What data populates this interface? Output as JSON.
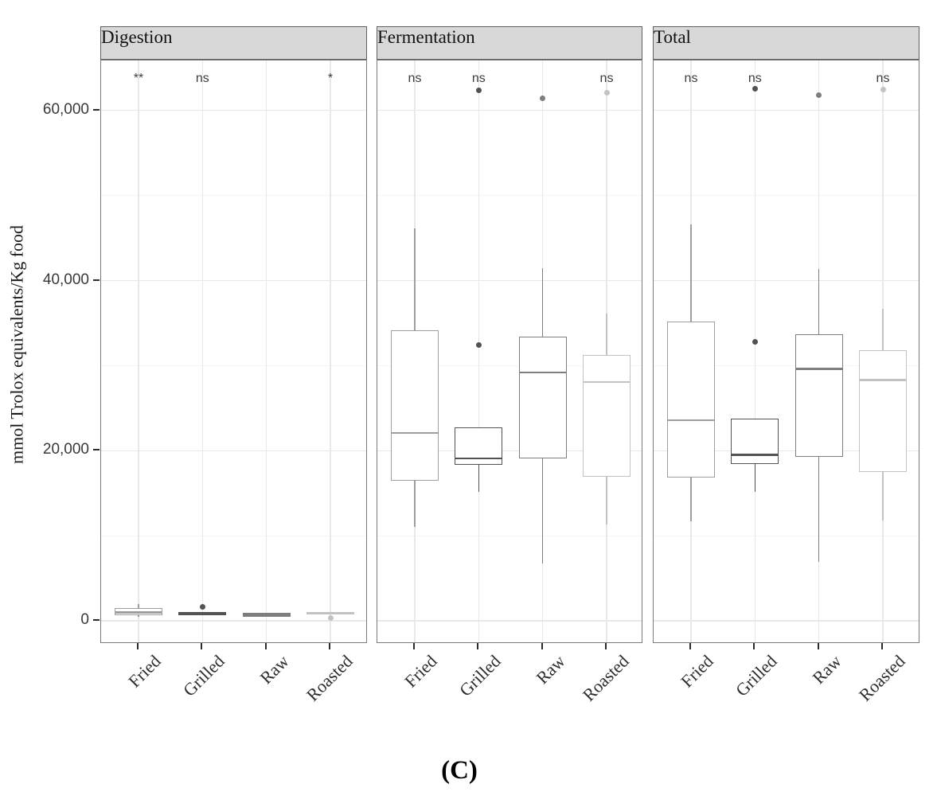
{
  "figure": {
    "caption": "(C)",
    "y_axis_title": "mmol Trolox equivalents/Kg food"
  },
  "chart_data": {
    "type": "boxplot",
    "facets": [
      "Digestion",
      "Fermentation",
      "Total"
    ],
    "categories": [
      "Fried",
      "Grilled",
      "Raw",
      "Roasted"
    ],
    "ylabel": "mmol Trolox equivalents/Kg food",
    "ylim": [
      -2700,
      65900
    ],
    "grid": "on",
    "y_ticks": [
      {
        "label": "0",
        "value": 0
      },
      {
        "label": "20,000",
        "value": 20000
      },
      {
        "label": "40,000",
        "value": 40000
      },
      {
        "label": "60,000",
        "value": 60000
      }
    ],
    "y_minor_values": [
      10000,
      30000,
      50000
    ],
    "category_colors": {
      "Fried": "#9E9E9E",
      "Grilled": "#525252",
      "Raw": "#7E7E7E",
      "Roasted": "#C2C2C2"
    },
    "style_colors": {
      "header_bg": "#d8d8d8",
      "header_border": "#616161",
      "panel_border": "#7b7b7b",
      "grid_major": "#e8e8e8",
      "grid_minor": "#f4f4f4",
      "tick": "#2b2b2b",
      "sig_text": "#3d3d3d"
    },
    "panels": [
      {
        "title": "Digestion",
        "significance": [
          "**",
          "ns",
          "",
          "*"
        ],
        "boxes": [
          {
            "category": "Fried",
            "whisker_low": 500,
            "q1": 650,
            "median": 1000,
            "q3": 1500,
            "whisker_high": 2000,
            "outliers": []
          },
          {
            "category": "Grilled",
            "whisker_low": 650,
            "q1": 650,
            "median": 850,
            "q3": 1050,
            "whisker_high": 1050,
            "outliers": [
              1600
            ]
          },
          {
            "category": "Raw",
            "whisker_low": 470,
            "q1": 470,
            "median": 700,
            "q3": 940,
            "whisker_high": 940,
            "outliers": []
          },
          {
            "category": "Roasted",
            "whisker_low": 840,
            "q1": 840,
            "median": 900,
            "q3": 1030,
            "whisker_high": 1030,
            "outliers": [
              370
            ]
          }
        ]
      },
      {
        "title": "Fermentation",
        "significance": [
          "ns",
          "ns",
          "",
          "ns"
        ],
        "boxes": [
          {
            "category": "Fried",
            "whisker_low": 11000,
            "q1": 16500,
            "median": 22100,
            "q3": 34200,
            "whisker_high": 46100,
            "outliers": []
          },
          {
            "category": "Grilled",
            "whisker_low": 15200,
            "q1": 18300,
            "median": 19100,
            "q3": 22700,
            "whisker_high": 22700,
            "outliers": [
              32400,
              62400
            ]
          },
          {
            "category": "Raw",
            "whisker_low": 6700,
            "q1": 19100,
            "median": 29200,
            "q3": 33400,
            "whisker_high": 41500,
            "outliers": [
              61400
            ]
          },
          {
            "category": "Roasted",
            "whisker_low": 11300,
            "q1": 16900,
            "median": 28100,
            "q3": 31300,
            "whisker_high": 36100,
            "outliers": [
              62100
            ]
          }
        ]
      },
      {
        "title": "Total",
        "significance": [
          "ns",
          "ns",
          "",
          "ns"
        ],
        "boxes": [
          {
            "category": "Fried",
            "whisker_low": 11700,
            "q1": 16800,
            "median": 23600,
            "q3": 35200,
            "whisker_high": 46600,
            "outliers": []
          },
          {
            "category": "Grilled",
            "whisker_low": 15200,
            "q1": 18400,
            "median": 19500,
            "q3": 23800,
            "whisker_high": 23800,
            "outliers": [
              32800,
              62600
            ]
          },
          {
            "category": "Raw",
            "whisker_low": 6900,
            "q1": 19300,
            "median": 29600,
            "q3": 33700,
            "whisker_high": 41400,
            "outliers": [
              61800
            ]
          },
          {
            "category": "Roasted",
            "whisker_low": 11800,
            "q1": 17500,
            "median": 28300,
            "q3": 31800,
            "whisker_high": 36700,
            "outliers": [
              62500
            ]
          }
        ]
      }
    ]
  }
}
